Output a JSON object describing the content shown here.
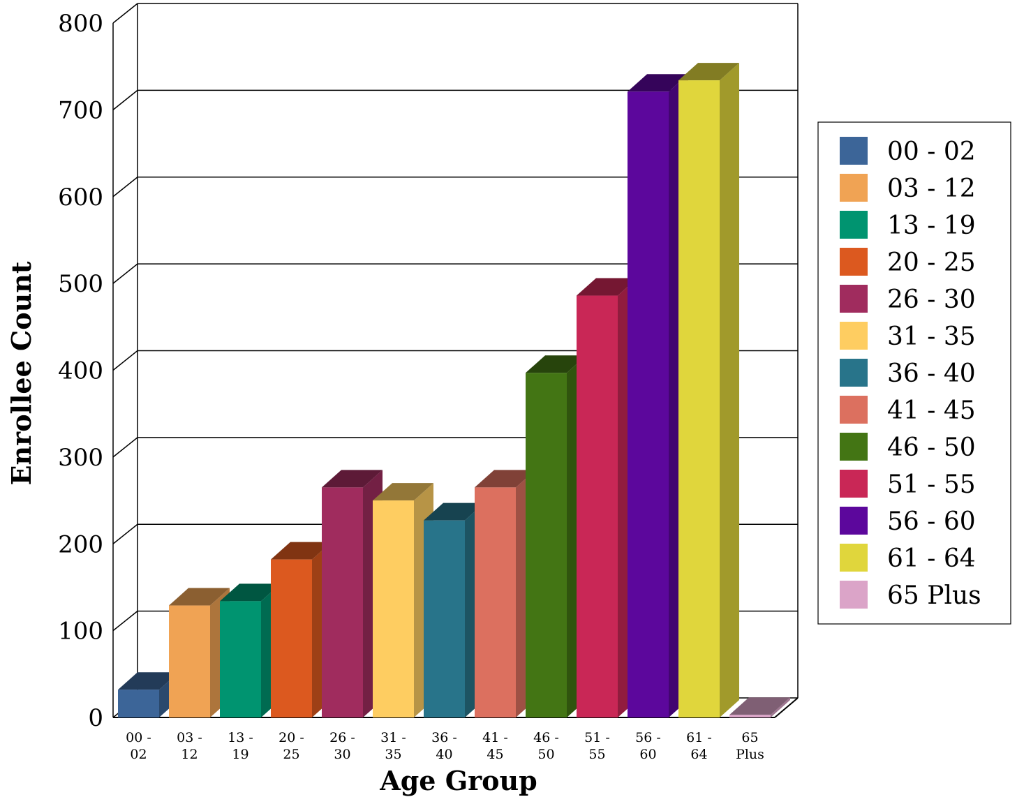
{
  "chart_data": {
    "type": "bar",
    "xlabel": "Age Group",
    "ylabel": "Enrollee Count",
    "ylim": [
      0,
      800
    ],
    "yticks": [
      0,
      100,
      200,
      300,
      400,
      500,
      600,
      700,
      800
    ],
    "grid": true,
    "legend_position": "right",
    "categories": [
      "00 - 02",
      "03 - 12",
      "13 - 19",
      "20 - 25",
      "26 - 30",
      "31 - 35",
      "36 - 40",
      "41 - 45",
      "46 - 50",
      "51 - 55",
      "56 - 60",
      "61 - 64",
      "65 Plus"
    ],
    "tick_labels": [
      [
        "00 -",
        "02"
      ],
      [
        "03 -",
        "12"
      ],
      [
        "13 -",
        "19"
      ],
      [
        "20 -",
        "25"
      ],
      [
        "26 -",
        "30"
      ],
      [
        "31 -",
        "35"
      ],
      [
        "36 -",
        "40"
      ],
      [
        "41 -",
        "45"
      ],
      [
        "46 -",
        "50"
      ],
      [
        "51 -",
        "55"
      ],
      [
        "56 -",
        "60"
      ],
      [
        "61 -",
        "64"
      ],
      [
        "65",
        "Plus"
      ]
    ],
    "values": [
      32,
      129,
      134,
      182,
      265,
      250,
      227,
      265,
      397,
      486,
      721,
      734,
      3
    ],
    "colors": [
      "#3c6598",
      "#f0a354",
      "#009470",
      "#dc591f",
      "#a02c5e",
      "#fecd61",
      "#28748a",
      "#dc705f",
      "#437514",
      "#c92756",
      "#5c079c",
      "#e0d63c",
      "#dba4c8"
    ]
  }
}
